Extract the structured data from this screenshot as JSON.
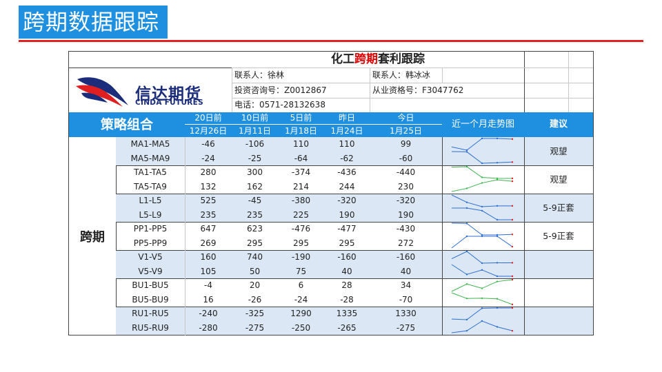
{
  "slide_title": "跨期数据跟踪",
  "sheet": {
    "title_part1": "化工",
    "title_part2": "跨期",
    "title_part3": "套利跟踪",
    "logo_cn": "信达期货",
    "logo_en": "CINDA FUTURES",
    "contact1": "联系人：徐林",
    "contact2": "联系人：韩冰冰",
    "cert1": "投资咨询号：Z0012867",
    "cert2": "从业资格号：F3047762",
    "phone": "电话：0571-28132638"
  },
  "header": {
    "strategy": "策略组合",
    "trend": "近一个月走势图",
    "advice": "建议",
    "cols": [
      {
        "l1": "20日前",
        "l2": "12月26日"
      },
      {
        "l1": "10日前",
        "l2": "1月11日"
      },
      {
        "l1": "5日前",
        "l2": "1月18日"
      },
      {
        "l1": "昨日",
        "l2": "1月24日"
      },
      {
        "l1": "今日",
        "l2": "1月25日"
      }
    ]
  },
  "side_label": "跨期",
  "rows": [
    {
      "name": "MA1-MA5",
      "v": [
        "-46",
        "-106",
        "110",
        "110",
        "99"
      ]
    },
    {
      "name": "MA5-MA9",
      "v": [
        "-24",
        "-25",
        "-64",
        "-62",
        "-60"
      ]
    },
    {
      "name": "TA1-TA5",
      "v": [
        "280",
        "300",
        "-374",
        "-436",
        "-440"
      ]
    },
    {
      "name": "TA5-TA9",
      "v": [
        "132",
        "162",
        "214",
        "244",
        "230"
      ]
    },
    {
      "name": "L1-L5",
      "v": [
        "525",
        "-45",
        "-380",
        "-320",
        "-320"
      ]
    },
    {
      "name": "L5-L9",
      "v": [
        "235",
        "235",
        "225",
        "190",
        "190"
      ]
    },
    {
      "name": "PP1-PP5",
      "v": [
        "647",
        "623",
        "-476",
        "-477",
        "-430"
      ]
    },
    {
      "name": "PP5-PP9",
      "v": [
        "269",
        "295",
        "295",
        "295",
        "272"
      ]
    },
    {
      "name": "V1-V5",
      "v": [
        "160",
        "740",
        "-190",
        "-160",
        "-160"
      ]
    },
    {
      "name": "V5-V9",
      "v": [
        "105",
        "50",
        "75",
        "40",
        "40"
      ]
    },
    {
      "name": "BU1-BU5",
      "v": [
        "-4",
        "20",
        "6",
        "28",
        "34"
      ]
    },
    {
      "name": "BU5-BU9",
      "v": [
        "16",
        "-26",
        "-24",
        "-28",
        "-70"
      ]
    },
    {
      "name": "RU1-RU5",
      "v": [
        "-240",
        "-325",
        "1290",
        "1335",
        "1330"
      ]
    },
    {
      "name": "RU5-RU9",
      "v": [
        "-280",
        "-275",
        "-250",
        "-265",
        "-275"
      ]
    }
  ],
  "advice": [
    "观望",
    "观望",
    "5-9正套",
    "5-9正套",
    "",
    "",
    ""
  ],
  "colors": {
    "header_blue": "#1f8fe0",
    "shade": "#dbe7f4",
    "line_blue": "#2f6fd0",
    "line_green": "#3fb34f",
    "marker_red": "#e02020"
  }
}
